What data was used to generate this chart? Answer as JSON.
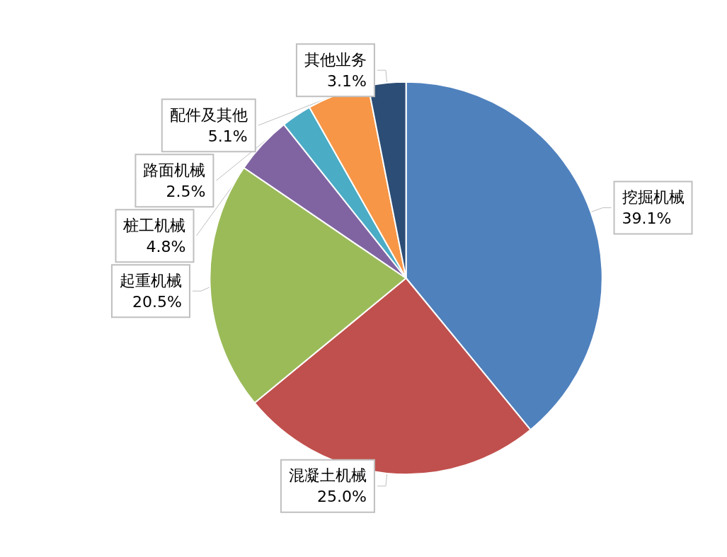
{
  "chart_data": {
    "type": "pie",
    "categories": [
      "挖掘机械",
      "混凝土机械",
      "起重机械",
      "桩工机械",
      "路面机械",
      "配件及其他",
      "其他业务"
    ],
    "values": [
      39.1,
      25.0,
      20.5,
      4.8,
      2.5,
      5.1,
      3.1
    ],
    "value_labels": [
      "39.1%",
      "25.0%",
      "20.5%",
      "4.8%",
      "2.5%",
      "5.1%",
      "3.1%"
    ],
    "colors": [
      "#4f81bd",
      "#c0504d",
      "#9bbb59",
      "#8064a2",
      "#4bacc6",
      "#f79646",
      "#2c4d75"
    ],
    "legend": false
  }
}
